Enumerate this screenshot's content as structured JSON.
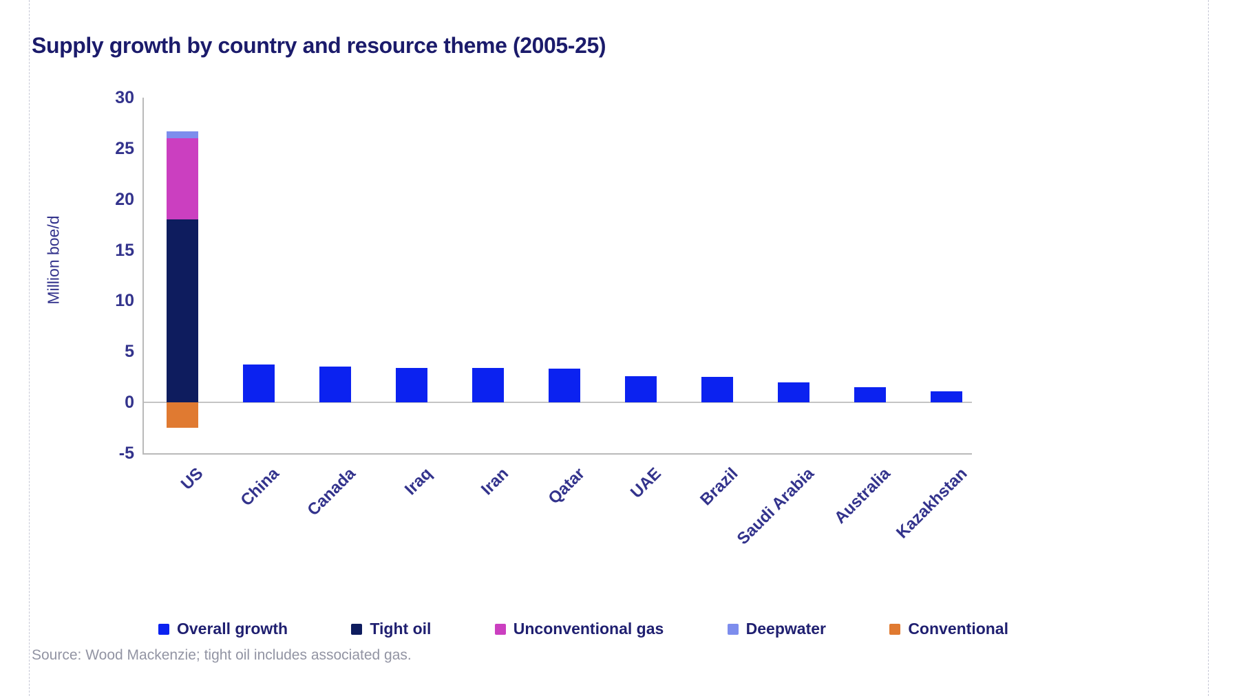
{
  "source": "Source: Wood Mackenzie; tight oil includes associated gas.",
  "chart_data": {
    "type": "bar",
    "stacked": true,
    "title": "Supply growth by country and resource theme (2005-25)",
    "xlabel": "",
    "ylabel": "Million boe/d",
    "ylim": [
      -5,
      30
    ],
    "yticks": [
      30,
      25,
      20,
      15,
      10,
      5,
      0,
      -5
    ],
    "grid": false,
    "legend_position": "bottom",
    "categories": [
      "US",
      "China",
      "Canada",
      "Iraq",
      "Iran",
      "Qatar",
      "UAE",
      "Brazil",
      "Saudi Arabia",
      "Australia",
      "Kazakhstan"
    ],
    "series": [
      {
        "name": "Overall growth",
        "color": "#0b22f0",
        "values": [
          null,
          3.7,
          3.5,
          3.4,
          3.4,
          3.3,
          2.6,
          2.5,
          2.0,
          1.5,
          1.1
        ]
      },
      {
        "name": "Tight oil",
        "color": "#0e1c5e",
        "values": [
          18.0,
          null,
          null,
          null,
          null,
          null,
          null,
          null,
          null,
          null,
          null
        ]
      },
      {
        "name": "Unconventional gas",
        "color": "#cb3fc0",
        "values": [
          8.0,
          null,
          null,
          null,
          null,
          null,
          null,
          null,
          null,
          null,
          null
        ]
      },
      {
        "name": "Deepwater",
        "color": "#7d8ded",
        "values": [
          0.7,
          null,
          null,
          null,
          null,
          null,
          null,
          null,
          null,
          null,
          null
        ]
      },
      {
        "name": "Conventional",
        "color": "#e07a31",
        "values": [
          -2.5,
          null,
          null,
          null,
          null,
          null,
          null,
          null,
          null,
          null,
          null
        ]
      }
    ]
  }
}
